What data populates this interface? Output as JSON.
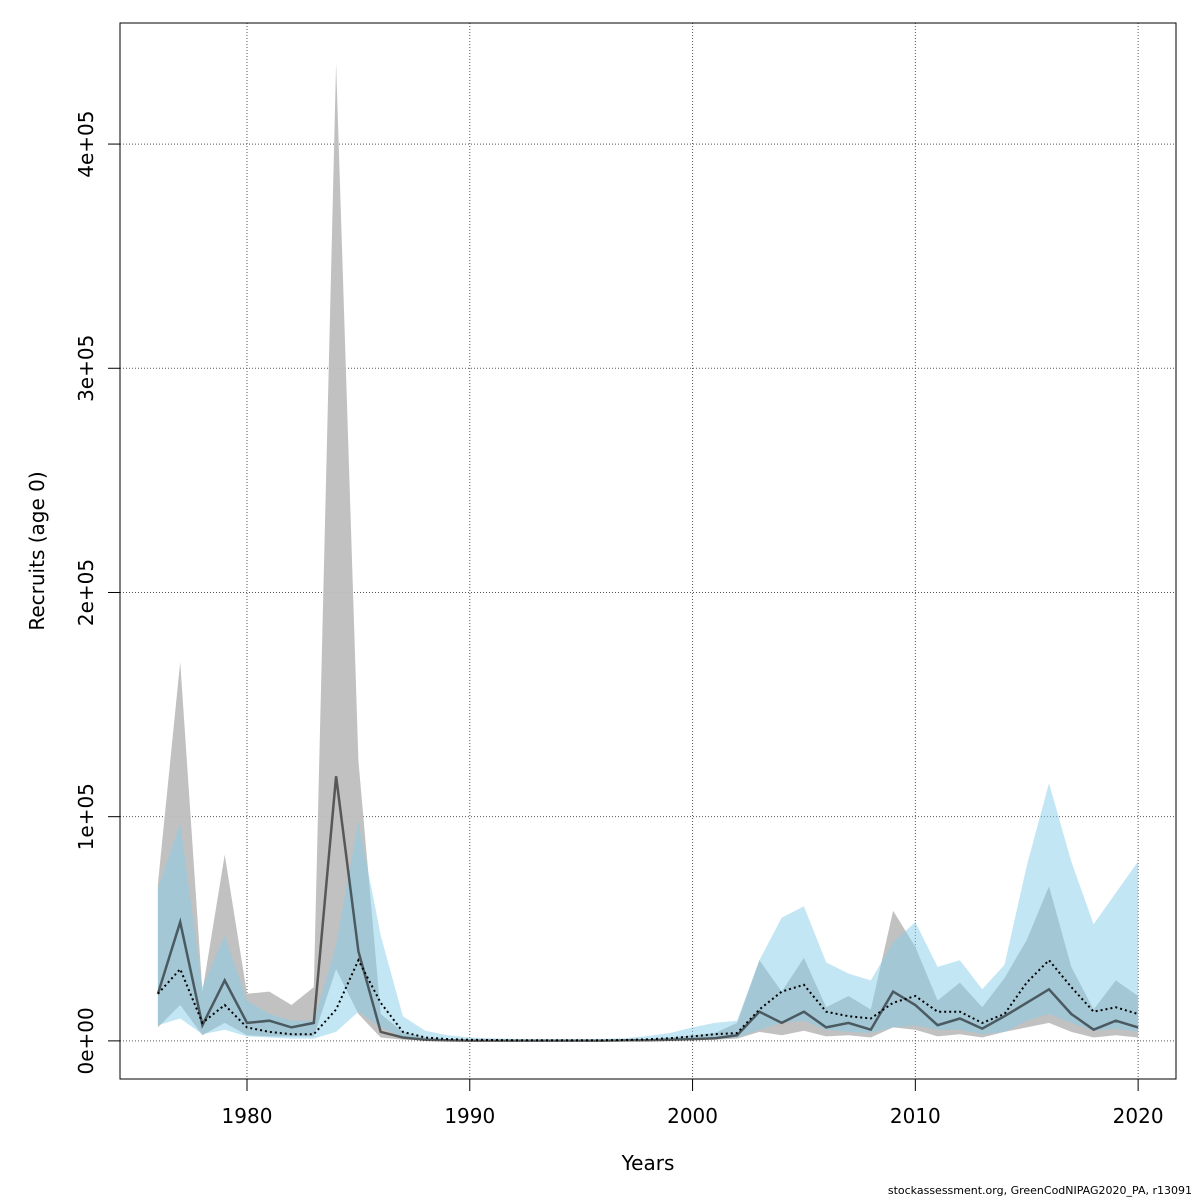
{
  "chart_data": {
    "type": "area",
    "xlabel": "Years",
    "ylabel": "Recruits (age 0)",
    "xlim": [
      1974.3,
      2021.7
    ],
    "ylim": [
      -17000,
      454000
    ],
    "x_ticks": [
      1980,
      1990,
      2000,
      2010,
      2020
    ],
    "y_ticks": [
      0,
      100000,
      200000,
      300000,
      400000
    ],
    "y_tick_labels": [
      "0e+00",
      "1e+05",
      "2e+05",
      "3e+05",
      "4e+05"
    ],
    "grid": true,
    "colors": {
      "gray_band": "#bebebe",
      "blue_band": "#87ceeb",
      "gray_line": "#000000",
      "blue_line": "#000000"
    },
    "x": [
      1976,
      1977,
      1978,
      1979,
      1980,
      1981,
      1982,
      1983,
      1984,
      1985,
      1986,
      1987,
      1988,
      1989,
      1990,
      1991,
      1992,
      1993,
      1994,
      1995,
      1996,
      1997,
      1998,
      1999,
      2000,
      2001,
      2002,
      2003,
      2004,
      2005,
      2006,
      2007,
      2008,
      2009,
      2010,
      2011,
      2012,
      2013,
      2014,
      2015,
      2016,
      2017,
      2018,
      2019,
      2020
    ],
    "series": [
      {
        "style": "solid",
        "band_color": "gray",
        "estimate": [
          21000,
          53000,
          7000,
          27000,
          8000,
          9000,
          6000,
          8000,
          118000,
          40000,
          4000,
          1500,
          500,
          200,
          100,
          100,
          100,
          100,
          100,
          100,
          100,
          200,
          300,
          500,
          800,
          1200,
          2500,
          13000,
          8000,
          13000,
          6000,
          8000,
          5000,
          22000,
          16000,
          7000,
          10000,
          5500,
          11000,
          17000,
          23000,
          12000,
          5000,
          9000,
          6000
        ],
        "lower": [
          6000,
          16000,
          2500,
          8000,
          2500,
          2000,
          2000,
          2000,
          32000,
          12000,
          1500,
          500,
          150,
          50,
          30,
          30,
          30,
          30,
          30,
          30,
          30,
          50,
          80,
          150,
          250,
          500,
          1000,
          4000,
          2500,
          4500,
          2000,
          2500,
          1500,
          6000,
          5000,
          2000,
          3000,
          1500,
          4000,
          6000,
          8000,
          4000,
          1500,
          2500,
          1500
        ],
        "upper": [
          70000,
          169000,
          22000,
          83000,
          21000,
          22000,
          16000,
          24000,
          436000,
          125000,
          12000,
          4000,
          1500,
          800,
          400,
          400,
          300,
          300,
          300,
          300,
          300,
          500,
          800,
          1500,
          2500,
          3500,
          8000,
          36000,
          22000,
          37000,
          15000,
          20000,
          14000,
          58000,
          42000,
          18000,
          26000,
          15000,
          28000,
          45000,
          69000,
          33000,
          14000,
          27000,
          20000
        ]
      },
      {
        "style": "dotted",
        "band_color": "blue",
        "estimate": [
          21000,
          32000,
          8000,
          16000,
          6000,
          4000,
          3000,
          3000,
          14000,
          36000,
          17000,
          4000,
          1500,
          800,
          500,
          400,
          300,
          300,
          300,
          300,
          300,
          400,
          700,
          1200,
          2000,
          3000,
          3500,
          14000,
          22000,
          25000,
          13000,
          11000,
          10000,
          17000,
          20000,
          13000,
          13000,
          8000,
          12000,
          26000,
          36000,
          24000,
          13000,
          15000,
          12000
        ],
        "lower": [
          7000,
          10000,
          3000,
          5000,
          2000,
          1500,
          1000,
          1000,
          4000,
          13000,
          6000,
          1500,
          500,
          300,
          200,
          150,
          100,
          100,
          100,
          100,
          100,
          150,
          250,
          400,
          700,
          1000,
          1500,
          5000,
          8000,
          9000,
          5000,
          4000,
          3500,
          6000,
          7000,
          5000,
          5000,
          3000,
          4000,
          9000,
          12000,
          8000,
          4500,
          5500,
          4000
        ],
        "upper": [
          68000,
          97000,
          24000,
          47000,
          18000,
          12000,
          9000,
          9000,
          43000,
          98000,
          47000,
          11000,
          4500,
          2500,
          1500,
          1200,
          900,
          800,
          800,
          800,
          900,
          1200,
          2200,
          3500,
          6000,
          8000,
          9000,
          36000,
          55000,
          60000,
          35000,
          30000,
          27000,
          44000,
          53000,
          33000,
          36000,
          23000,
          34000,
          78000,
          115000,
          80000,
          52000,
          66000,
          80000
        ]
      }
    ]
  },
  "footer": "stockassessment.org, GreenCodNIPAG2020_PA, r13091"
}
